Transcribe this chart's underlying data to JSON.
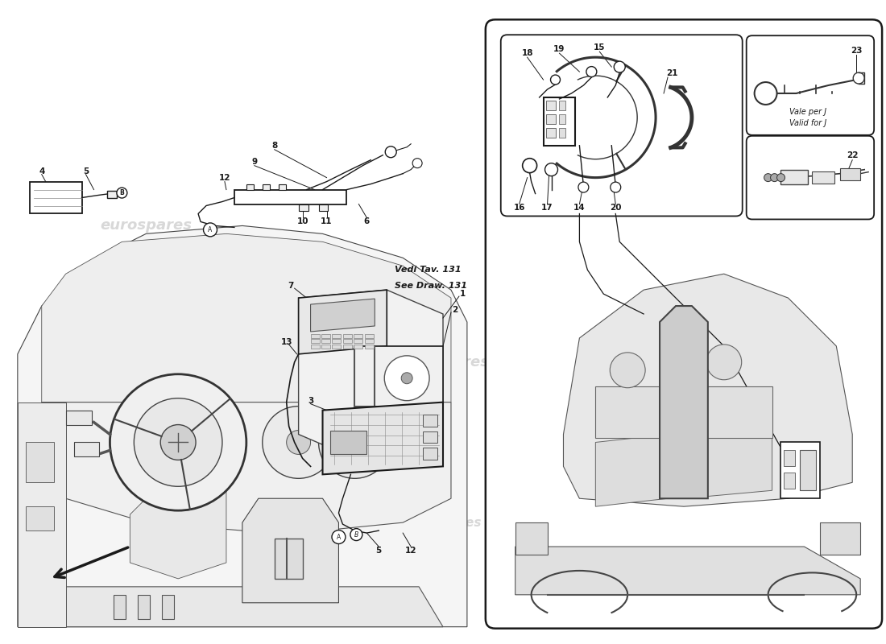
{
  "bg_color": "#ffffff",
  "lc": "#1a1a1a",
  "gc": "#555555",
  "wc": "#d8d8d8",
  "wt": "eurospares",
  "vedi1": "Vedi Tav. 131",
  "vedi2": "See Draw. 131",
  "vale1": "Vale per J",
  "vale2": "Valid for J"
}
